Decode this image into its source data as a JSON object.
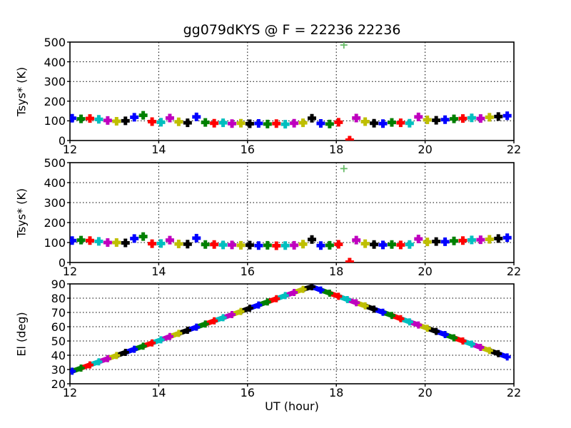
{
  "chart_data": {
    "type": "scatter",
    "title": "gg079dKYS @ F = 22236 22236",
    "xlabel": "UT (hour)",
    "x_range": [
      12,
      22
    ],
    "x_ticks": [
      12,
      14,
      16,
      18,
      20,
      22
    ],
    "grid": "dotted",
    "color_cycle": [
      "#0000ff",
      "#008000",
      "#ff0000",
      "#00bfbf",
      "#bf00bf",
      "#bfbf00",
      "#000000"
    ],
    "subplots": [
      {
        "name": "tsys-top",
        "ylabel": "Tsys* (K)",
        "y_range": [
          0,
          500
        ],
        "y_ticks": [
          0,
          100,
          200,
          300,
          400,
          500
        ],
        "field": "t1",
        "style": "markers",
        "outliers": [
          {
            "x": 18.17,
            "y": 485,
            "color": "#66bb66",
            "thin": true
          },
          {
            "x": 18.3,
            "y": 2,
            "color": "#ff0000",
            "thin": false
          }
        ]
      },
      {
        "name": "tsys-middle",
        "ylabel": "Tsys* (K)",
        "y_range": [
          0,
          500
        ],
        "y_ticks": [
          0,
          100,
          200,
          300,
          400,
          500
        ],
        "field": "t2",
        "style": "markers",
        "outliers": [
          {
            "x": 18.17,
            "y": 470,
            "color": "#66bb66",
            "thin": true
          },
          {
            "x": 18.3,
            "y": 2,
            "color": "#ff0000",
            "thin": false
          }
        ]
      },
      {
        "name": "elevation",
        "ylabel": "El (deg)",
        "y_range": [
          20,
          90
        ],
        "y_ticks": [
          20,
          30,
          40,
          50,
          60,
          70,
          80,
          90
        ],
        "field": "el",
        "style": "line",
        "outliers": []
      }
    ],
    "scans": [
      {
        "x": 12.05,
        "t1": 113,
        "t2": 110,
        "el": 28.8,
        "c": 0
      },
      {
        "x": 12.25,
        "t1": 110,
        "t2": 112,
        "el": 31.0,
        "c": 1
      },
      {
        "x": 12.45,
        "t1": 112,
        "t2": 110,
        "el": 33.2,
        "c": 2
      },
      {
        "x": 12.65,
        "t1": 108,
        "t2": 106,
        "el": 35.4,
        "c": 3
      },
      {
        "x": 12.85,
        "t1": 102,
        "t2": 100,
        "el": 37.6,
        "c": 4
      },
      {
        "x": 13.05,
        "t1": 98,
        "t2": 100,
        "el": 39.8,
        "c": 5
      },
      {
        "x": 13.25,
        "t1": 100,
        "t2": 98,
        "el": 42.0,
        "c": 6
      },
      {
        "x": 13.45,
        "t1": 118,
        "t2": 120,
        "el": 44.2,
        "c": 0
      },
      {
        "x": 13.65,
        "t1": 128,
        "t2": 130,
        "el": 46.4,
        "c": 1
      },
      {
        "x": 13.85,
        "t1": 96,
        "t2": 94,
        "el": 48.6,
        "c": 2
      },
      {
        "x": 14.05,
        "t1": 93,
        "t2": 95,
        "el": 50.8,
        "c": 3
      },
      {
        "x": 14.25,
        "t1": 114,
        "t2": 112,
        "el": 53.1,
        "c": 4
      },
      {
        "x": 14.45,
        "t1": 95,
        "t2": 93,
        "el": 55.3,
        "c": 5
      },
      {
        "x": 14.65,
        "t1": 90,
        "t2": 92,
        "el": 57.5,
        "c": 6
      },
      {
        "x": 14.85,
        "t1": 120,
        "t2": 122,
        "el": 59.7,
        "c": 0
      },
      {
        "x": 15.05,
        "t1": 92,
        "t2": 90,
        "el": 61.9,
        "c": 1
      },
      {
        "x": 15.25,
        "t1": 88,
        "t2": 90,
        "el": 64.1,
        "c": 2
      },
      {
        "x": 15.45,
        "t1": 90,
        "t2": 88,
        "el": 66.3,
        "c": 3
      },
      {
        "x": 15.65,
        "t1": 86,
        "t2": 88,
        "el": 68.5,
        "c": 4
      },
      {
        "x": 15.85,
        "t1": 88,
        "t2": 86,
        "el": 70.7,
        "c": 5
      },
      {
        "x": 16.05,
        "t1": 85,
        "t2": 87,
        "el": 73.0,
        "c": 6
      },
      {
        "x": 16.25,
        "t1": 87,
        "t2": 85,
        "el": 75.2,
        "c": 0
      },
      {
        "x": 16.45,
        "t1": 84,
        "t2": 86,
        "el": 77.4,
        "c": 1
      },
      {
        "x": 16.65,
        "t1": 86,
        "t2": 84,
        "el": 79.6,
        "c": 2
      },
      {
        "x": 16.85,
        "t1": 83,
        "t2": 85,
        "el": 81.8,
        "c": 3
      },
      {
        "x": 17.05,
        "t1": 88,
        "t2": 86,
        "el": 84.0,
        "c": 4
      },
      {
        "x": 17.25,
        "t1": 90,
        "t2": 92,
        "el": 86.2,
        "c": 5
      },
      {
        "x": 17.45,
        "t1": 113,
        "t2": 115,
        "el": 88.0,
        "c": 6
      },
      {
        "x": 17.65,
        "t1": 87,
        "t2": 85,
        "el": 85.7,
        "c": 0
      },
      {
        "x": 17.85,
        "t1": 84,
        "t2": 86,
        "el": 83.5,
        "c": 1
      },
      {
        "x": 18.05,
        "t1": 93,
        "t2": 91,
        "el": 81.3,
        "c": 2
      },
      {
        "x": 18.25,
        "t1": null,
        "t2": null,
        "el": 79.0,
        "c": 3
      },
      {
        "x": 18.45,
        "t1": 114,
        "t2": 112,
        "el": 76.8,
        "c": 4
      },
      {
        "x": 18.65,
        "t1": 96,
        "t2": 94,
        "el": 74.6,
        "c": 5
      },
      {
        "x": 18.85,
        "t1": 88,
        "t2": 90,
        "el": 72.3,
        "c": 6
      },
      {
        "x": 19.05,
        "t1": 86,
        "t2": 88,
        "el": 70.1,
        "c": 0
      },
      {
        "x": 19.25,
        "t1": 92,
        "t2": 90,
        "el": 67.9,
        "c": 1
      },
      {
        "x": 19.45,
        "t1": 90,
        "t2": 88,
        "el": 65.6,
        "c": 2
      },
      {
        "x": 19.65,
        "t1": 88,
        "t2": 90,
        "el": 63.4,
        "c": 3
      },
      {
        "x": 19.85,
        "t1": 120,
        "t2": 118,
        "el": 61.2,
        "c": 4
      },
      {
        "x": 20.05,
        "t1": 105,
        "t2": 103,
        "el": 58.9,
        "c": 5
      },
      {
        "x": 20.25,
        "t1": 103,
        "t2": 105,
        "el": 56.7,
        "c": 6
      },
      {
        "x": 20.45,
        "t1": 106,
        "t2": 104,
        "el": 54.5,
        "c": 0
      },
      {
        "x": 20.65,
        "t1": 110,
        "t2": 108,
        "el": 52.2,
        "c": 1
      },
      {
        "x": 20.85,
        "t1": 112,
        "t2": 110,
        "el": 50.0,
        "c": 2
      },
      {
        "x": 21.05,
        "t1": 115,
        "t2": 113,
        "el": 47.8,
        "c": 3
      },
      {
        "x": 21.25,
        "t1": 112,
        "t2": 114,
        "el": 45.5,
        "c": 4
      },
      {
        "x": 21.45,
        "t1": 118,
        "t2": 116,
        "el": 43.3,
        "c": 5
      },
      {
        "x": 21.65,
        "t1": 122,
        "t2": 120,
        "el": 41.1,
        "c": 6
      },
      {
        "x": 21.85,
        "t1": 126,
        "t2": 124,
        "el": 38.8,
        "c": 0
      }
    ]
  }
}
